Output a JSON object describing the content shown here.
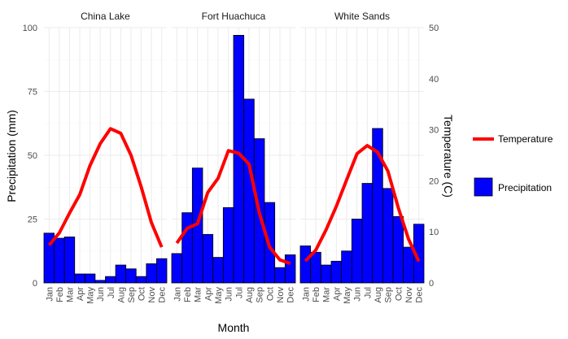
{
  "chart_data": {
    "type": "bar",
    "facet_by": "station",
    "categories": [
      "Jan",
      "Feb",
      "Mar",
      "Apr",
      "May",
      "Jun",
      "Jul",
      "Aug",
      "Sep",
      "Oct",
      "Nov",
      "Dec"
    ],
    "xlabel": "Month",
    "ylabel": "Precipitation (mm)",
    "y2label": "Temperature (C)",
    "ylim": [
      0,
      100
    ],
    "y2lim": [
      0,
      50
    ],
    "yticks": [
      0,
      25,
      50,
      75,
      100
    ],
    "y2ticks": [
      0,
      10,
      20,
      30,
      40,
      50
    ],
    "grid": true,
    "legend_position": "right",
    "legend": [
      {
        "name": "Temperature",
        "kind": "line",
        "color": "#ff0000"
      },
      {
        "name": "Precipitation",
        "kind": "bar",
        "color": "#0000ff"
      }
    ],
    "facets": [
      {
        "name": "China Lake",
        "precipitation": [
          19.5,
          17.5,
          18,
          3.5,
          3.5,
          1,
          2.5,
          7,
          5.5,
          2.5,
          7.5,
          9.5
        ],
        "temperature": [
          7.4,
          9.8,
          13.7,
          17.3,
          23,
          27.3,
          30.2,
          29.3,
          25,
          18.8,
          11.8,
          7
        ]
      },
      {
        "name": "Fort Huachuca",
        "precipitation": [
          11.5,
          27.5,
          45,
          19,
          10,
          29.5,
          97,
          72,
          56.5,
          31.5,
          6,
          11
        ],
        "temperature": [
          7.8,
          10.7,
          11.6,
          17.7,
          20.5,
          25.9,
          25.4,
          23.3,
          13.7,
          7,
          4.5,
          3.8
        ]
      },
      {
        "name": "White Sands",
        "precipitation": [
          14.5,
          12,
          7,
          8.5,
          12.5,
          25,
          39,
          60.5,
          37,
          26,
          14,
          23
        ],
        "temperature": [
          4.3,
          6.4,
          10.4,
          15,
          20.2,
          25.3,
          26.9,
          25.6,
          21.9,
          14.8,
          8.6,
          4.2
        ]
      }
    ]
  }
}
